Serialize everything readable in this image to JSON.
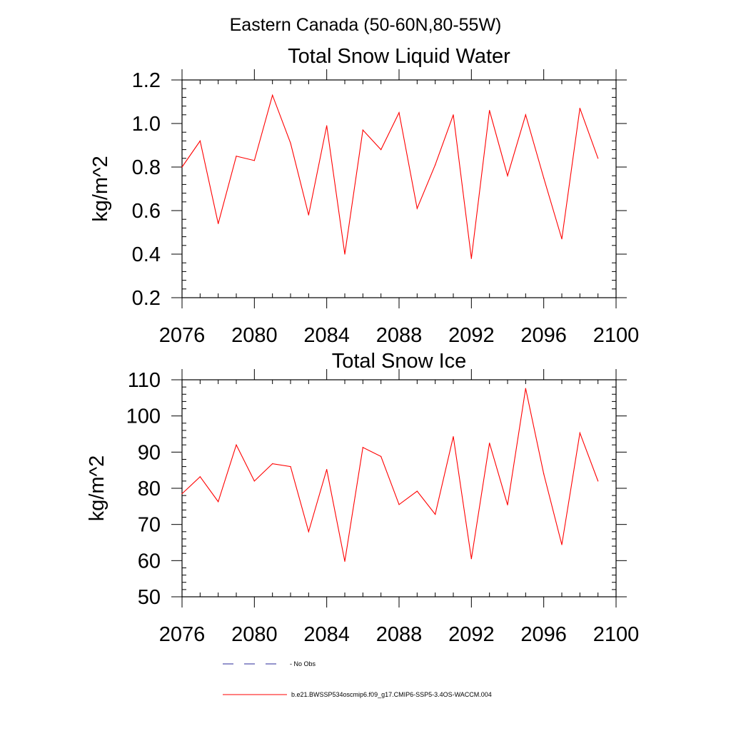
{
  "suptitle": "Eastern Canada (50-60N,80-55W)",
  "chart_data": [
    {
      "type": "line",
      "title": "Total Snow Liquid Water",
      "xlabel": "",
      "ylabel": "kg/m^2",
      "xlim": [
        2076,
        2100
      ],
      "ylim": [
        0.2,
        1.2
      ],
      "xticks": [
        2076,
        2080,
        2084,
        2088,
        2092,
        2096,
        2100
      ],
      "yticks": [
        0.2,
        0.4,
        0.6,
        0.8,
        1.0,
        1.2
      ],
      "ytick_labels": [
        "0.2",
        "0.4",
        "0.6",
        "0.8",
        "1.0",
        "1.2"
      ],
      "series": [
        {
          "name": "b.e21.BWSSP534oscmip6.f09_g17.CMIP6-SSP5-3.4OS-WACCM.004",
          "color": "#ff0000",
          "x": [
            2076,
            2077,
            2078,
            2079,
            2080,
            2081,
            2082,
            2083,
            2084,
            2085,
            2086,
            2087,
            2088,
            2089,
            2090,
            2091,
            2092,
            2093,
            2094,
            2095,
            2096,
            2097,
            2098,
            2099
          ],
          "values": [
            0.8,
            0.92,
            0.54,
            0.85,
            0.83,
            1.13,
            0.91,
            0.58,
            0.99,
            0.4,
            0.97,
            0.88,
            1.05,
            0.61,
            0.81,
            1.04,
            0.38,
            1.06,
            0.76,
            1.04,
            0.75,
            0.47,
            1.07,
            0.84
          ]
        }
      ]
    },
    {
      "type": "line",
      "title": "Total Snow Ice",
      "xlabel": "",
      "ylabel": "kg/m^2",
      "xlim": [
        2076,
        2100
      ],
      "ylim": [
        50,
        110
      ],
      "xticks": [
        2076,
        2080,
        2084,
        2088,
        2092,
        2096,
        2100
      ],
      "yticks": [
        50,
        60,
        70,
        80,
        90,
        100,
        110
      ],
      "ytick_labels": [
        "50",
        "60",
        "70",
        "80",
        "90",
        "100",
        "110"
      ],
      "series": [
        {
          "name": "b.e21.BWSSP534oscmip6.f09_g17.CMIP6-SSP5-3.4OS-WACCM.004",
          "color": "#ff0000",
          "x": [
            2076,
            2077,
            2078,
            2079,
            2080,
            2081,
            2082,
            2083,
            2084,
            2085,
            2086,
            2087,
            2088,
            2089,
            2090,
            2091,
            2092,
            2093,
            2094,
            2095,
            2096,
            2097,
            2098,
            2099
          ],
          "values": [
            78.5,
            83.2,
            76.3,
            92.0,
            82.0,
            86.8,
            86.0,
            68.0,
            85.2,
            59.8,
            91.3,
            88.8,
            75.5,
            79.2,
            72.8,
            94.3,
            60.5,
            92.5,
            75.4,
            107.6,
            84.0,
            64.4,
            95.3,
            82.0
          ]
        }
      ]
    }
  ],
  "legend": {
    "placement": "bottom",
    "entries": [
      {
        "label": "No Obs",
        "style": "dashed",
        "color": "#2a2a9a"
      },
      {
        "label": "b.e21.BWSSP534oscmip6.f09_g17.CMIP6-SSP5-3.4OS-WACCM.004",
        "style": "solid",
        "color": "#ff0000"
      }
    ]
  }
}
